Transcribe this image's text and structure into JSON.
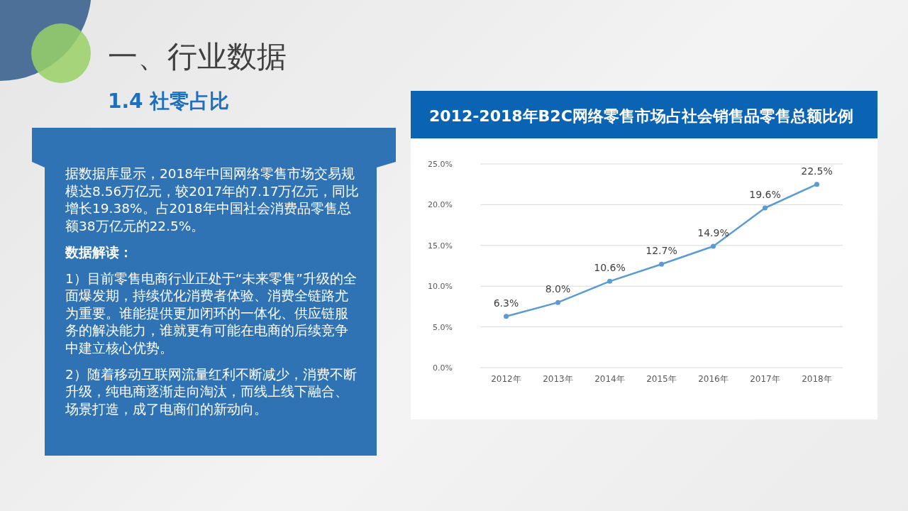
{
  "chart_data": [
    {
      "type": "other",
      "title": "一、行业数据",
      "subtitle": "1.4 社零占比",
      "annotations": [
        "据数据库显示，2018年中国网络零售市场交易规模达8.56万亿元，较2017年的7.17万亿元，同比增长19.38%。占2018年中国社会消费品零售总额38万亿元的22.5%。",
        "数据解读：",
        "1）目前零售电商行业正处于“未来零售”升级的全面爆发期，持续优化消费者体验、消费全链路尤为重要。谁能提供更加闭环的一体化、供应链服务的解决能力，谁就更有可能在电商的后续竞争中建立核心优势。",
        "2）随着移动互联网流量红利不断减少，消费不断升级，纯电商逐渐走向淘汰，而线上线下融合、场景打造，成了电商们的新动向。"
      ]
    },
    {
      "type": "line",
      "title": "2012-2018年B2C网络零售市场占社会销售品零售总额比例",
      "categories": [
        "2012年",
        "2013年",
        "2014年",
        "2015年",
        "2016年",
        "2017年",
        "2018年"
      ],
      "values": [
        6.3,
        8.0,
        10.6,
        12.7,
        14.9,
        19.6,
        22.5
      ],
      "value_labels": [
        "6.3%",
        "8.0%",
        "10.6%",
        "12.7%",
        "14.9%",
        "19.6%",
        "22.5%"
      ],
      "color": "#5b9bd5",
      "ylim": [
        0,
        25
      ],
      "yticks": [
        {
          "value": 0,
          "label": "0.0%"
        },
        {
          "value": 5,
          "label": "5.0%"
        },
        {
          "value": 10,
          "label": "10.0%"
        },
        {
          "value": 15,
          "label": "15.0%"
        },
        {
          "value": 20,
          "label": "20.0%"
        },
        {
          "value": 25,
          "label": "25.0%"
        }
      ],
      "grid": "y",
      "marker": "circle",
      "line_style": "solid"
    }
  ]
}
